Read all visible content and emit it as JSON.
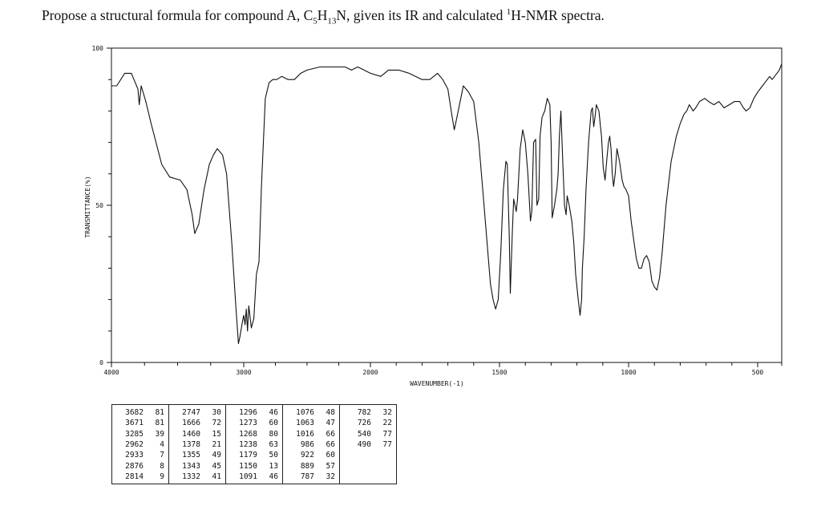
{
  "question": {
    "prefix": "Propose a structural formula for compound A, C",
    "c_sub": "5",
    "mid_h": "H",
    "h_sub": "13",
    "after_formula": "N, given its IR and calculated ",
    "sup": "1",
    "suffix": "H-NMR spectra."
  },
  "chart_data": {
    "type": "line",
    "xlabel": "WAVENUMBER(-1)",
    "ylabel": "TRANSMITTANCE(%)",
    "x_reversed": true,
    "xlim": [
      4000,
      400
    ],
    "ylim": [
      0,
      100
    ],
    "x_tick_labels": [
      "4000",
      "3000",
      "2000",
      "1500",
      "1000",
      "500"
    ],
    "y_tick_labels": [
      "0",
      "50",
      "100"
    ],
    "series": [
      {
        "points": [
          [
            4000,
            88
          ],
          [
            3960,
            88
          ],
          [
            3900,
            92
          ],
          [
            3850,
            92
          ],
          [
            3830,
            90
          ],
          [
            3800,
            87
          ],
          [
            3790,
            82
          ],
          [
            3775,
            88
          ],
          [
            3740,
            83
          ],
          [
            3700,
            76
          ],
          [
            3620,
            63
          ],
          [
            3560,
            59
          ],
          [
            3480,
            58
          ],
          [
            3430,
            55
          ],
          [
            3390,
            47
          ],
          [
            3370,
            41
          ],
          [
            3340,
            44
          ],
          [
            3300,
            55
          ],
          [
            3260,
            63
          ],
          [
            3230,
            66
          ],
          [
            3200,
            68
          ],
          [
            3160,
            66
          ],
          [
            3130,
            60
          ],
          [
            3090,
            38
          ],
          [
            3060,
            18
          ],
          [
            3040,
            6
          ],
          [
            3030,
            8
          ],
          [
            3010,
            13
          ],
          [
            3000,
            15
          ],
          [
            2990,
            12
          ],
          [
            2980,
            17
          ],
          [
            2970,
            10
          ],
          [
            2960,
            18
          ],
          [
            2940,
            11
          ],
          [
            2920,
            14
          ],
          [
            2900,
            28
          ],
          [
            2880,
            32
          ],
          [
            2860,
            56
          ],
          [
            2830,
            84
          ],
          [
            2800,
            89
          ],
          [
            2770,
            90
          ],
          [
            2740,
            90
          ],
          [
            2700,
            91
          ],
          [
            2650,
            90
          ],
          [
            2600,
            90
          ],
          [
            2550,
            92
          ],
          [
            2500,
            93
          ],
          [
            2400,
            94
          ],
          [
            2300,
            94
          ],
          [
            2200,
            94
          ],
          [
            2150,
            93
          ],
          [
            2100,
            94
          ],
          [
            2050,
            93
          ],
          [
            2000,
            92
          ],
          [
            1960,
            91
          ],
          [
            1930,
            93
          ],
          [
            1890,
            93
          ],
          [
            1850,
            92
          ],
          [
            1800,
            90
          ],
          [
            1770,
            90
          ],
          [
            1740,
            92
          ],
          [
            1720,
            90
          ],
          [
            1700,
            87
          ],
          [
            1685,
            79
          ],
          [
            1675,
            74
          ],
          [
            1665,
            78
          ],
          [
            1640,
            88
          ],
          [
            1620,
            86
          ],
          [
            1600,
            83
          ],
          [
            1580,
            70
          ],
          [
            1560,
            50
          ],
          [
            1545,
            35
          ],
          [
            1535,
            25
          ],
          [
            1525,
            20
          ],
          [
            1515,
            17
          ],
          [
            1505,
            20
          ],
          [
            1495,
            35
          ],
          [
            1485,
            55
          ],
          [
            1475,
            64
          ],
          [
            1470,
            63
          ],
          [
            1462,
            40
          ],
          [
            1458,
            22
          ],
          [
            1455,
            30
          ],
          [
            1450,
            42
          ],
          [
            1445,
            52
          ],
          [
            1440,
            50
          ],
          [
            1435,
            48
          ],
          [
            1430,
            52
          ],
          [
            1420,
            68
          ],
          [
            1410,
            74
          ],
          [
            1400,
            70
          ],
          [
            1390,
            60
          ],
          [
            1380,
            45
          ],
          [
            1375,
            48
          ],
          [
            1368,
            70
          ],
          [
            1360,
            71
          ],
          [
            1355,
            50
          ],
          [
            1348,
            52
          ],
          [
            1343,
            72
          ],
          [
            1335,
            78
          ],
          [
            1325,
            80
          ],
          [
            1315,
            84
          ],
          [
            1305,
            82
          ],
          [
            1300,
            70
          ],
          [
            1296,
            46
          ],
          [
            1287,
            50
          ],
          [
            1278,
            55
          ],
          [
            1273,
            60
          ],
          [
            1268,
            72
          ],
          [
            1262,
            80
          ],
          [
            1255,
            64
          ],
          [
            1248,
            50
          ],
          [
            1242,
            47
          ],
          [
            1238,
            53
          ],
          [
            1230,
            50
          ],
          [
            1220,
            45
          ],
          [
            1212,
            38
          ],
          [
            1205,
            28
          ],
          [
            1195,
            20
          ],
          [
            1188,
            15
          ],
          [
            1182,
            20
          ],
          [
            1179,
            30
          ],
          [
            1172,
            40
          ],
          [
            1165,
            55
          ],
          [
            1155,
            70
          ],
          [
            1150,
            75
          ],
          [
            1145,
            80
          ],
          [
            1140,
            81
          ],
          [
            1135,
            75
          ],
          [
            1130,
            78
          ],
          [
            1125,
            82
          ],
          [
            1115,
            80
          ],
          [
            1105,
            72
          ],
          [
            1098,
            62
          ],
          [
            1091,
            58
          ],
          [
            1084,
            65
          ],
          [
            1078,
            70
          ],
          [
            1073,
            72
          ],
          [
            1068,
            68
          ],
          [
            1063,
            60
          ],
          [
            1058,
            56
          ],
          [
            1052,
            60
          ],
          [
            1045,
            68
          ],
          [
            1035,
            64
          ],
          [
            1025,
            58
          ],
          [
            1018,
            56
          ],
          [
            1010,
            55
          ],
          [
            1000,
            53
          ],
          [
            990,
            45
          ],
          [
            980,
            39
          ],
          [
            970,
            33
          ],
          [
            960,
            30
          ],
          [
            950,
            30
          ],
          [
            940,
            33
          ],
          [
            930,
            34
          ],
          [
            920,
            32
          ],
          [
            910,
            26
          ],
          [
            900,
            24
          ],
          [
            890,
            23
          ],
          [
            880,
            27
          ],
          [
            870,
            35
          ],
          [
            855,
            50
          ],
          [
            835,
            64
          ],
          [
            815,
            72
          ],
          [
            800,
            76
          ],
          [
            785,
            79
          ],
          [
            775,
            80
          ],
          [
            765,
            82
          ],
          [
            750,
            80
          ],
          [
            740,
            81
          ],
          [
            725,
            83
          ],
          [
            705,
            84
          ],
          [
            690,
            83
          ],
          [
            670,
            82
          ],
          [
            650,
            83
          ],
          [
            630,
            81
          ],
          [
            610,
            82
          ],
          [
            590,
            83
          ],
          [
            570,
            83
          ],
          [
            555,
            81
          ],
          [
            545,
            80
          ],
          [
            530,
            81
          ],
          [
            515,
            84
          ],
          [
            500,
            86
          ],
          [
            490,
            87
          ],
          [
            480,
            88
          ],
          [
            470,
            89
          ],
          [
            460,
            90
          ],
          [
            450,
            91
          ],
          [
            440,
            90
          ],
          [
            430,
            91
          ],
          [
            420,
            92
          ],
          [
            410,
            93
          ],
          [
            400,
            95
          ]
        ]
      }
    ],
    "peak_table": [
      [
        [
          "3682",
          "81"
        ],
        [
          "3671",
          "81"
        ],
        [
          "3285",
          "39"
        ],
        [
          "2962",
          "4"
        ],
        [
          "2933",
          "7"
        ],
        [
          "2876",
          "8"
        ],
        [
          "2814",
          "9"
        ]
      ],
      [
        [
          "2747",
          "30"
        ],
        [
          "1666",
          "72"
        ],
        [
          "1460",
          "15"
        ],
        [
          "1378",
          "21"
        ],
        [
          "1355",
          "49"
        ],
        [
          "1343",
          "45"
        ],
        [
          "1332",
          "41"
        ]
      ],
      [
        [
          "1296",
          "46"
        ],
        [
          "1273",
          "60"
        ],
        [
          "1268",
          "80"
        ],
        [
          "1238",
          "63"
        ],
        [
          "1179",
          "50"
        ],
        [
          "1150",
          "13"
        ],
        [
          "1091",
          "46"
        ]
      ],
      [
        [
          "1076",
          "48"
        ],
        [
          "1063",
          "47"
        ],
        [
          "1016",
          "66"
        ],
        [
          "986",
          "66"
        ],
        [
          "922",
          "60"
        ],
        [
          "889",
          "57"
        ],
        [
          "787",
          "32"
        ]
      ],
      [
        [
          "782",
          "32"
        ],
        [
          "726",
          "22"
        ],
        [
          "540",
          "77"
        ],
        [
          "490",
          "77"
        ]
      ]
    ]
  }
}
